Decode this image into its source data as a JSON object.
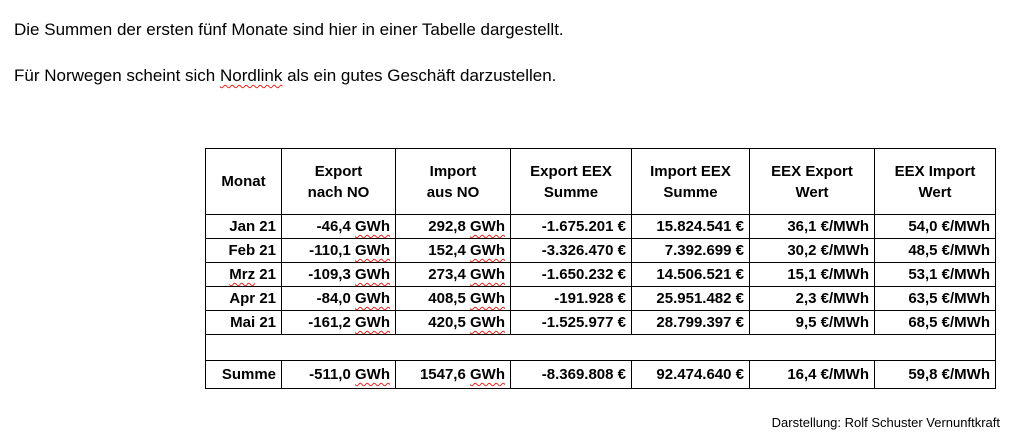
{
  "paragraphs": {
    "p1": "Die Summen der ersten fünf Monate sind hier in einer Tabelle dargestellt.",
    "p2_before": "Für Norwegen scheint sich ",
    "p2_link": "Nordlink",
    "p2_after": " als ein gutes Geschäft darzustellen."
  },
  "table": {
    "headers": [
      [
        "Monat"
      ],
      [
        "Export",
        "nach NO"
      ],
      [
        "Import",
        "aus NO"
      ],
      [
        "Export EEX",
        "Summe"
      ],
      [
        "Import EEX",
        "Summe"
      ],
      [
        "EEX Export",
        "Wert"
      ],
      [
        "EEX Import",
        "Wert"
      ]
    ],
    "rows": [
      {
        "month": "Jan 21",
        "export_value": "-46,4",
        "import_value": "292,8",
        "unit": "GWh",
        "export_eex": "-1.675.201 €",
        "import_eex": "15.824.541 €",
        "eex_export_wert": "36,1 €/MWh",
        "eex_import_wert": "54,0 €/MWh"
      },
      {
        "month": "Feb 21",
        "export_value": "-110,1",
        "import_value": "152,4",
        "unit": "GWh",
        "export_eex": "-3.326.470 €",
        "import_eex": "7.392.699 €",
        "eex_export_wert": "30,2 €/MWh",
        "eex_import_wert": "48,5 €/MWh"
      },
      {
        "month": "Mrz 21",
        "export_value": "-109,3",
        "import_value": "273,4",
        "unit": "GWh",
        "export_eex": "-1.650.232 €",
        "import_eex": "14.506.521 €",
        "eex_export_wert": "15,1 €/MWh",
        "eex_import_wert": "53,1 €/MWh"
      },
      {
        "month": "Apr 21",
        "export_value": "-84,0",
        "import_value": "408,5",
        "unit": "GWh",
        "export_eex": "-191.928 €",
        "import_eex": "25.951.482 €",
        "eex_export_wert": "2,3 €/MWh",
        "eex_import_wert": "63,5 €/MWh"
      },
      {
        "month": "Mai 21",
        "export_value": "-161,2",
        "import_value": "420,5",
        "unit": "GWh",
        "export_eex": "-1.525.977 €",
        "import_eex": "28.799.397 €",
        "eex_export_wert": "9,5 €/MWh",
        "eex_import_wert": "68,5 €/MWh"
      }
    ],
    "sum": {
      "month": "Summe",
      "export_value": "-511,0",
      "import_value": "1547,6",
      "unit": "GWh",
      "export_eex": "-8.369.808 €",
      "import_eex": "92.474.640 €",
      "eex_export_wert": "16,4 €/MWh",
      "eex_import_wert": "59,8 €/MWh"
    }
  },
  "credit": "Darstellung:  Rolf Schuster Vernunftkraft",
  "colors": {
    "spellcheck": "#e0261c",
    "text": "#000000",
    "background": "#ffffff"
  }
}
